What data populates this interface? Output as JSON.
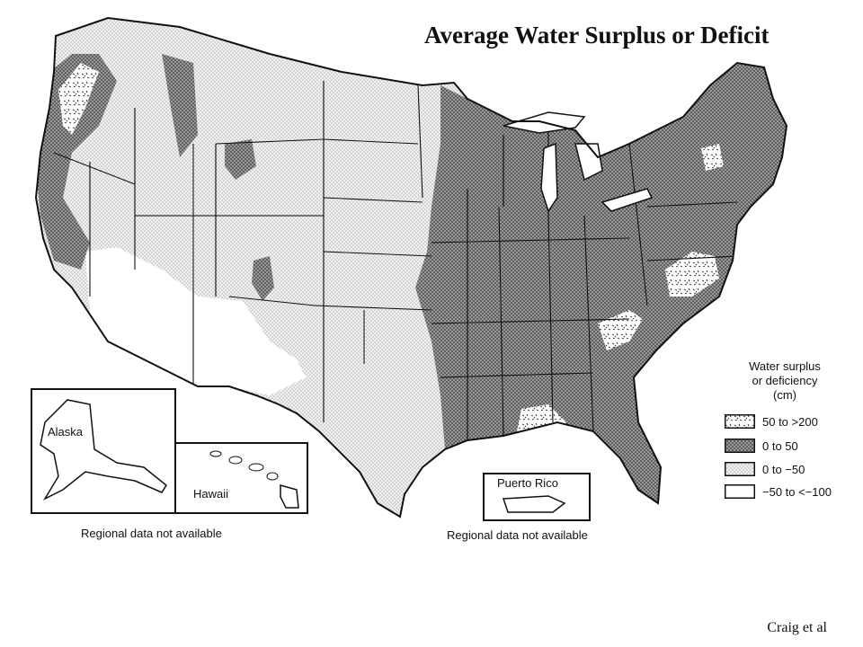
{
  "title": "Average Water Surplus or Deficit",
  "credit": "Craig et al",
  "legend": {
    "title_lines": [
      "Water surplus",
      "or deficiency",
      "(cm)"
    ],
    "items": [
      {
        "label": "50 to >200",
        "fill": "url(#pat-surplus)",
        "name": "legend-surplus-high"
      },
      {
        "label": "0 to 50",
        "fill": "url(#pat-dark)",
        "name": "legend-surplus-low"
      },
      {
        "label": "0 to −50",
        "fill": "url(#pat-light)",
        "name": "legend-deficit-low"
      },
      {
        "label": "−50 to <−100",
        "fill": "#ffffff",
        "name": "legend-deficit-high"
      }
    ]
  },
  "insets": {
    "alaska": "Alaska",
    "hawaii": "Hawaii",
    "puerto_rico": "Puerto Rico"
  },
  "notes": {
    "left": "Regional data not available",
    "right": "Regional data not available"
  },
  "colors": {
    "ink": "#111111",
    "dark_fill": "#8a8a8a",
    "light_fill": "#e2e2e2",
    "white_fill": "#ffffff"
  }
}
